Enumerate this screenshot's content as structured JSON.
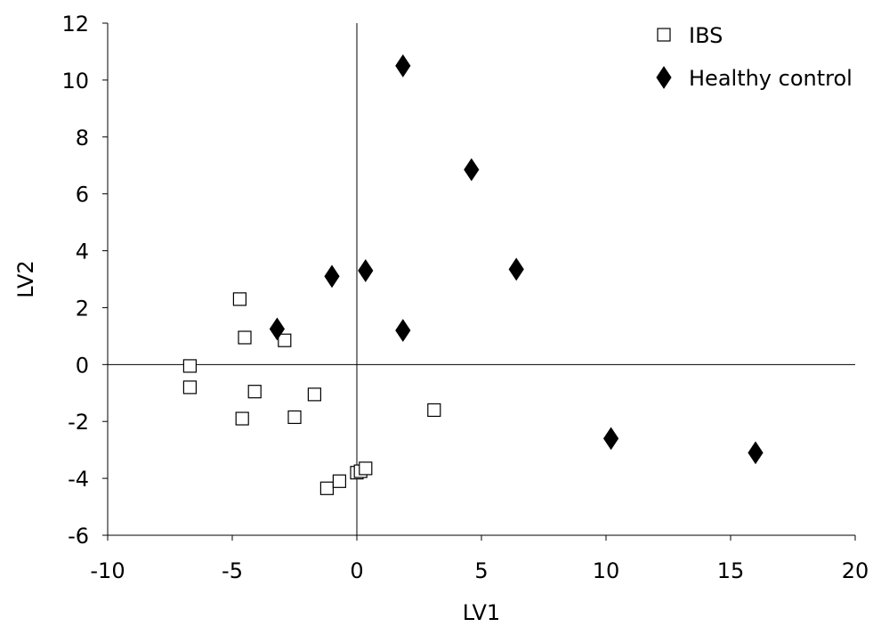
{
  "chart_data": {
    "type": "scatter",
    "title": "",
    "xlabel": "LV1",
    "ylabel": "LV2",
    "xlim": [
      -10,
      20
    ],
    "ylim": [
      -6,
      12
    ],
    "xticks": [
      -10,
      -5,
      0,
      5,
      10,
      15,
      20
    ],
    "yticks": [
      -6,
      -4,
      -2,
      0,
      2,
      4,
      6,
      8,
      10,
      12
    ],
    "xtick_labels": [
      "-10",
      "-5",
      "0",
      "5",
      "10",
      "15",
      "20"
    ],
    "ytick_labels": [
      "-6",
      "-4",
      "-2",
      "0",
      "2",
      "4",
      "6",
      "8",
      "10",
      "12"
    ],
    "grid": false,
    "zero_lines": true,
    "legend_position": "top-right",
    "series": [
      {
        "name": "IBS",
        "marker": "open-square",
        "color": "#000000",
        "points": [
          {
            "x": -6.7,
            "y": -0.05
          },
          {
            "x": -6.7,
            "y": -0.8
          },
          {
            "x": -4.7,
            "y": 2.3
          },
          {
            "x": -4.5,
            "y": 0.95
          },
          {
            "x": -4.6,
            "y": -1.9
          },
          {
            "x": -4.1,
            "y": -0.95
          },
          {
            "x": -2.9,
            "y": 0.85
          },
          {
            "x": -2.5,
            "y": -1.85
          },
          {
            "x": -1.7,
            "y": -1.05
          },
          {
            "x": -1.2,
            "y": -4.35
          },
          {
            "x": -0.7,
            "y": -4.1
          },
          {
            "x": 0.0,
            "y": -3.8
          },
          {
            "x": 0.15,
            "y": -3.75
          },
          {
            "x": 0.35,
            "y": -3.65
          },
          {
            "x": 3.1,
            "y": -1.6
          }
        ]
      },
      {
        "name": "Healthy control",
        "marker": "filled-diamond",
        "color": "#000000",
        "points": [
          {
            "x": 1.85,
            "y": 10.5
          },
          {
            "x": 4.6,
            "y": 6.85
          },
          {
            "x": 6.4,
            "y": 3.35
          },
          {
            "x": 0.35,
            "y": 3.3
          },
          {
            "x": -1.0,
            "y": 3.1
          },
          {
            "x": 1.85,
            "y": 1.2
          },
          {
            "x": -3.2,
            "y": 1.25
          },
          {
            "x": 10.2,
            "y": -2.6
          },
          {
            "x": 16.0,
            "y": -3.1
          }
        ]
      }
    ]
  }
}
